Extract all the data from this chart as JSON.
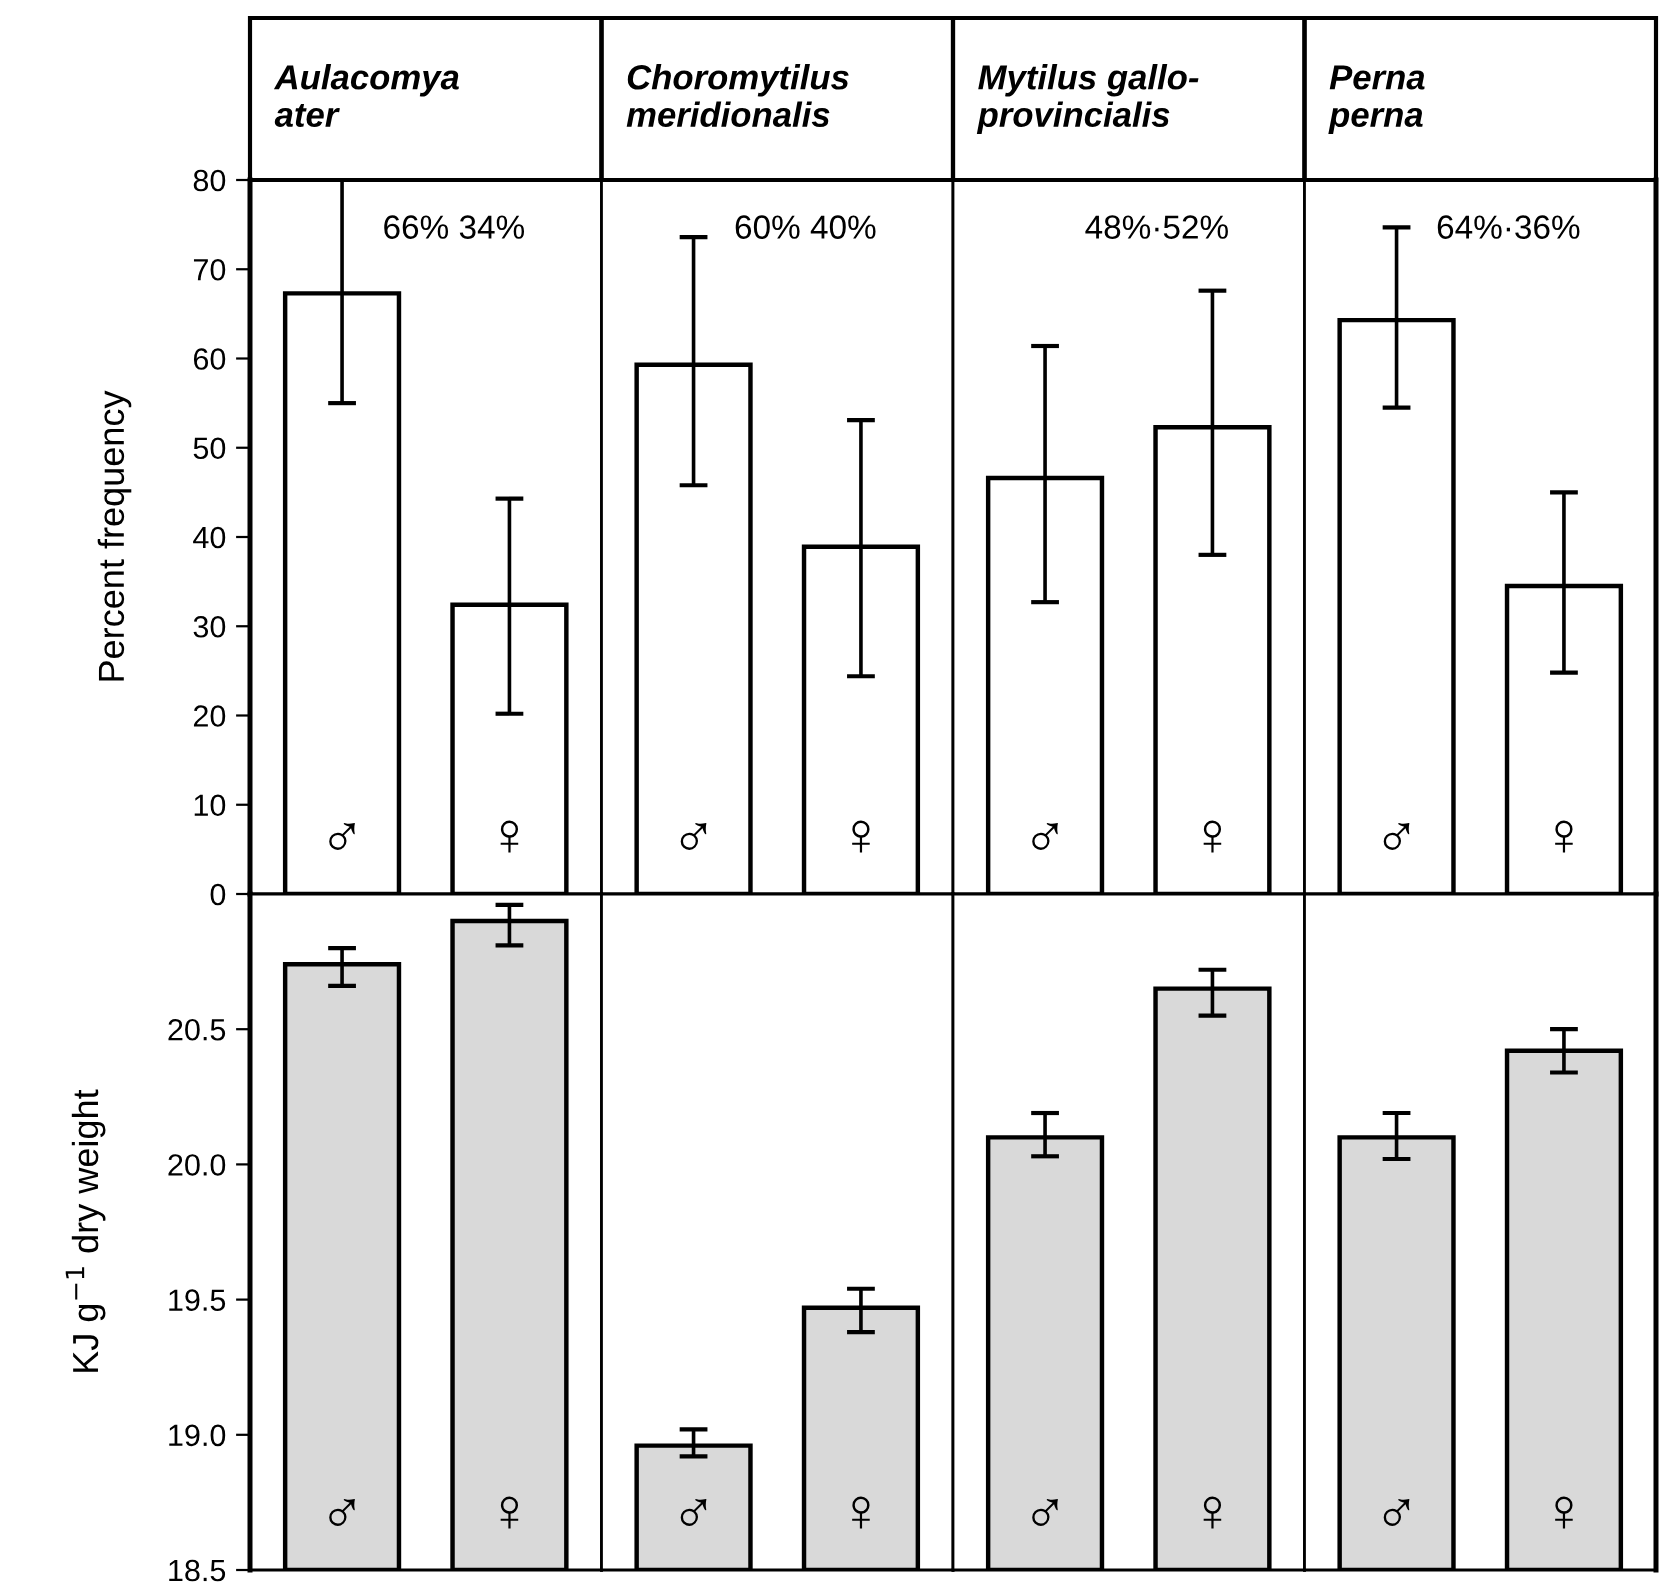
{
  "chart_data": [
    {
      "type": "bar",
      "title": "Aulacomya\nater",
      "ylabel": "Percent frequency",
      "categories": [
        "♂",
        "♀"
      ],
      "values": [
        67.3,
        32.4
      ],
      "errors": [
        [
          55,
          80
        ],
        [
          20.2,
          44.3
        ]
      ],
      "color": "#ffffff",
      "ylim": [
        0,
        80
      ],
      "yticks": [
        0,
        10,
        20,
        30,
        40,
        50,
        60,
        70,
        80
      ],
      "annotations": [
        "66% 34%"
      ],
      "grid": false,
      "legend": false
    },
    {
      "type": "bar",
      "title": "Choromytilus\nmeridionalis",
      "categories": [
        "♂",
        "♀"
      ],
      "values": [
        59.3,
        38.9
      ],
      "errors": [
        [
          45.8,
          73.6
        ],
        [
          24.4,
          53.1
        ]
      ],
      "color": "#ffffff",
      "ylim": [
        0,
        80
      ],
      "yticks": [
        0,
        10,
        20,
        30,
        40,
        50,
        60,
        70,
        80
      ],
      "tick_labels": "x",
      "annotations": [
        "60% 40%"
      ],
      "grid": false,
      "legend": false
    },
    {
      "type": "bar",
      "title": "Mytilus gallo-\nprovincialis",
      "categories": [
        "♂",
        "♀"
      ],
      "values": [
        46.6,
        52.3
      ],
      "errors": [
        [
          32.7,
          61.4
        ],
        [
          38.0,
          67.6
        ]
      ],
      "color": "#ffffff",
      "ylim": [
        0,
        80
      ],
      "yticks": [
        0,
        10,
        20,
        30,
        40,
        50,
        60,
        70,
        80
      ],
      "tick_labels": "x",
      "annotations": [
        "48%·52%"
      ],
      "grid": false,
      "legend": false
    },
    {
      "type": "bar",
      "title": "Perna\nperna",
      "categories": [
        "♂",
        "♀"
      ],
      "values": [
        64.3,
        34.5
      ],
      "errors": [
        [
          54.5,
          74.7
        ],
        [
          24.8,
          45.0
        ]
      ],
      "color": "#ffffff",
      "ylim": [
        0,
        80
      ],
      "yticks": [
        0,
        10,
        20,
        30,
        40,
        50,
        60,
        70,
        80
      ],
      "tick_labels": "x",
      "annotations": [
        "64%·36%"
      ],
      "grid": false,
      "legend": false
    },
    {
      "type": "bar",
      "ylabel": "KJ g$^{−1}$ dry weight",
      "categories": [
        "♂",
        "♀"
      ],
      "values": [
        20.74,
        20.9
      ],
      "errors": [
        [
          20.66,
          20.8
        ],
        [
          20.81,
          20.96
        ]
      ],
      "color": "#d9d9d9",
      "ylim": [
        18.5,
        21.0
      ],
      "yticks": [
        18.5,
        {
          "value": 19,
          "label": "19.0"
        },
        19.5,
        {
          "value": 20,
          "label": "20.0"
        },
        20.5
      ],
      "grid": false,
      "legend": false
    },
    {
      "type": "bar",
      "categories": [
        "♂",
        "♀"
      ],
      "values": [
        18.96,
        19.47
      ],
      "errors": [
        [
          18.92,
          19.02
        ],
        [
          19.38,
          19.54
        ]
      ],
      "color": "#d9d9d9",
      "ylim": [
        18.5,
        21.0
      ],
      "yticks": [
        18.5,
        19.0,
        19.5,
        20.0,
        20.5
      ],
      "tick_labels": "x",
      "grid": false,
      "legend": false
    },
    {
      "type": "bar",
      "categories": [
        "♂",
        "♀"
      ],
      "values": [
        20.1,
        20.65
      ],
      "errors": [
        [
          20.03,
          20.19
        ],
        [
          20.55,
          20.72
        ]
      ],
      "color": "#d9d9d9",
      "ylim": [
        18.5,
        21.0
      ],
      "yticks": [
        18.5,
        19.0,
        19.5,
        20.0,
        20.5
      ],
      "tick_labels": "x",
      "grid": false,
      "legend": false
    },
    {
      "type": "bar",
      "categories": [
        "♂",
        "♀"
      ],
      "values": [
        20.1,
        20.42
      ],
      "errors": [
        [
          20.02,
          20.19
        ],
        [
          20.34,
          20.5
        ]
      ],
      "color": "#d9d9d9",
      "ylim": [
        18.5,
        21.0
      ],
      "yticks": [
        18.5,
        19.0,
        19.5,
        20.0,
        20.5
      ],
      "tick_labels": "x",
      "grid": false,
      "legend": false
    }
  ]
}
